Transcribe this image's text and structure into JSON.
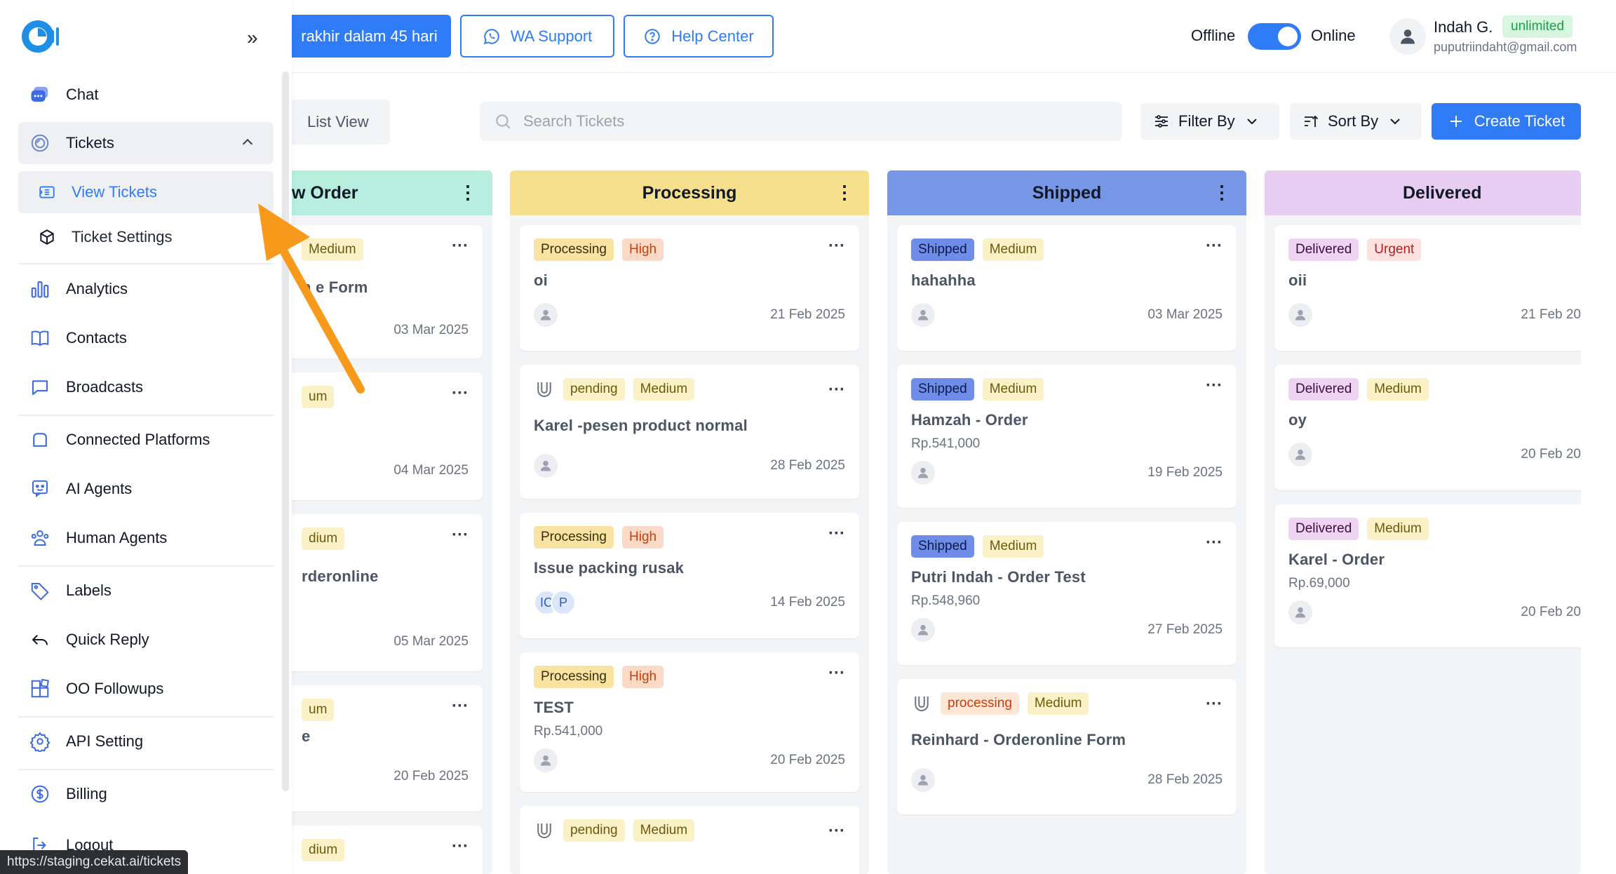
{
  "topbar": {
    "trial_label": "rakhir dalam 45 hari",
    "wa_support": "WA Support",
    "help_center": "Help Center",
    "offline_label": "Offline",
    "online_label": "Online",
    "user_name": "Indah G.",
    "plan": "unlimited",
    "user_email": "puputriindaht@gmail.com"
  },
  "sidebar": {
    "items": [
      {
        "label": "Chat",
        "icon": "chat-icon"
      },
      {
        "label": "Tickets",
        "icon": "tickets-icon"
      },
      {
        "label": "View Tickets",
        "icon": "view-tickets-icon"
      },
      {
        "label": "Ticket Settings",
        "icon": "cube-icon"
      },
      {
        "label": "Analytics",
        "icon": "bar-chart-icon"
      },
      {
        "label": "Contacts",
        "icon": "contacts-icon"
      },
      {
        "label": "Broadcasts",
        "icon": "broadcast-icon"
      },
      {
        "label": "Connected Platforms",
        "icon": "platforms-icon"
      },
      {
        "label": "AI Agents",
        "icon": "ai-agent-icon"
      },
      {
        "label": "Human Agents",
        "icon": "human-agents-icon"
      },
      {
        "label": "Labels",
        "icon": "label-icon"
      },
      {
        "label": "Quick Reply",
        "icon": "reply-icon"
      },
      {
        "label": "OO Followups",
        "icon": "followups-icon"
      },
      {
        "label": "API Setting",
        "icon": "settings-icon"
      },
      {
        "label": "Billing",
        "icon": "billing-icon"
      },
      {
        "label": "Logout",
        "icon": "logout-icon"
      }
    ],
    "url_tooltip": "https://staging.cekat.ai/tickets"
  },
  "toolbar": {
    "list_view": "List View",
    "search_placeholder": "Search Tickets",
    "filter_by": "Filter By",
    "sort_by": "Sort By",
    "create_ticket": "Create Ticket"
  },
  "colors": {
    "accent": "#2f7cf6",
    "new_order_header": "#b7eedd",
    "processing_header": "#f6e08e",
    "shipped_header": "#7797e6",
    "delivered_header": "#e8cdf2",
    "annotation_arrow": "#f79a1b"
  },
  "board": {
    "new_order": {
      "title": "w Order",
      "cards": [
        {
          "tags": [
            "Medium"
          ],
          "title": "n  e Form",
          "date": "03 Mar 2025"
        },
        {
          "tags": [
            "um"
          ],
          "title": "",
          "date": "04 Mar 2025"
        },
        {
          "tags": [
            "dium"
          ],
          "title": "rderonline",
          "date": "05 Mar 2025"
        },
        {
          "tags": [
            "um"
          ],
          "title": "e",
          "date": "20 Feb 2025"
        },
        {
          "tags": [
            "dium"
          ],
          "title": "",
          "date": ""
        }
      ]
    },
    "processing": {
      "title": "Processing",
      "cards": [
        {
          "tags": [
            "Processing",
            "High"
          ],
          "title": "oi",
          "date": "21 Feb 2025"
        },
        {
          "tags": [
            "pending",
            "Medium"
          ],
          "title": "Karel -pesen product normal",
          "date": "28 Feb 2025"
        },
        {
          "tags": [
            "Processing",
            "High"
          ],
          "title": "Issue packing rusak",
          "date": "14 Feb 2025",
          "initials": [
            "IC",
            "P"
          ]
        },
        {
          "tags": [
            "Processing",
            "High"
          ],
          "title": "TEST",
          "price": "Rp.541,000",
          "date": "20 Feb 2025"
        },
        {
          "tags": [
            "pending",
            "Medium"
          ],
          "title": "",
          "date": ""
        }
      ]
    },
    "shipped": {
      "title": "Shipped",
      "cards": [
        {
          "tags": [
            "Shipped",
            "Medium"
          ],
          "title": "hahahha",
          "date": "03 Mar 2025"
        },
        {
          "tags": [
            "Shipped",
            "Medium"
          ],
          "title": "Hamzah - Order",
          "price": "Rp.541,000",
          "date": "19 Feb 2025"
        },
        {
          "tags": [
            "Shipped",
            "Medium"
          ],
          "title": "Putri Indah - Order Test",
          "price": "Rp.548,960",
          "date": "27 Feb 2025"
        },
        {
          "tags": [
            "processing",
            "Medium"
          ],
          "title": "Reinhard - Orderonline Form",
          "date": "28 Feb 2025"
        }
      ]
    },
    "delivered": {
      "title": "Delivered",
      "cards": [
        {
          "tags": [
            "Delivered",
            "Urgent"
          ],
          "title": "oii",
          "date": "21 Feb 20"
        },
        {
          "tags": [
            "Delivered",
            "Medium"
          ],
          "title": "oy",
          "date": "20 Feb 20"
        },
        {
          "tags": [
            "Delivered",
            "Medium"
          ],
          "title": "Karel - Order",
          "price": "Rp.69,000",
          "date": "20 Feb 20"
        }
      ]
    }
  }
}
